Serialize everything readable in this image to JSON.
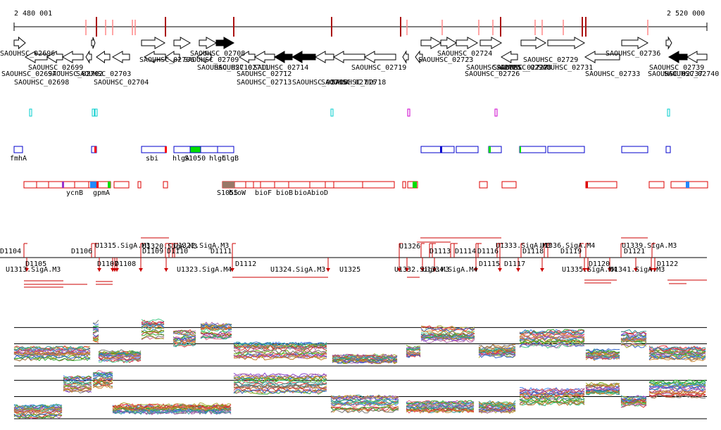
{
  "axis": {
    "start_label": "2 480 001",
    "end_label": "2 520 000",
    "start": 2480001,
    "end": 2520000
  },
  "colors": {
    "axis": "#000000",
    "tick_red": "#aa0000",
    "tick_light": "#ff9999",
    "gene_outline": "#000000",
    "gene_highlight": "#000000",
    "transcript": "#0000ff",
    "region": "#dd0000",
    "green": "#00dd00",
    "cyan": "#00cccc",
    "magenta": "#cc00cc"
  },
  "gene_labels": [
    "SAOUHSC_02696",
    "SAOUHSC_02697",
    "SAOUHSC_02698",
    "SAOUHSC_02699",
    "SAOUHSC_02702",
    "SAOUHSC_02703",
    "SAOUHSC_02704",
    "SAOUHSC_02706",
    "SAOUHSC_02708",
    "SAOUHSC_02709",
    "SAOUHSC_02710",
    "SAOUHSC_02711",
    "SAOUHSC_02712",
    "SAOUHSC_02713",
    "SAOUHSC_02714",
    "SAOUHSC_02715",
    "SAOUHSC_02716",
    "SAOUHSC_02718",
    "SAOUHSC_02719",
    "SAOUHSC_02723",
    "SAOUHSC_02724",
    "SAOUHSC_02725",
    "SAOUHSC_02726",
    "SAOUHSC_02727",
    "SAOUHSC_02728",
    "SAOUHSC_02729",
    "SAOUHSC_02731",
    "SAOUHSC_02733",
    "SAOUHSC_02736",
    "SAOUHSC_02737",
    "SAOUHSC_02739",
    "SAOUHSC_02740"
  ],
  "annot_labels_row1": [
    "fmhA",
    "sbi",
    "hlgA",
    "S1050",
    "hlgC",
    "hlgB"
  ],
  "annot_labels_row2": [
    "ycnB",
    "gpmA",
    "S1055",
    "bioW",
    "bioF",
    "bioB",
    "bioA",
    "bioD"
  ],
  "promoter_labels_above": [
    "D1104",
    "D1106",
    "U1315.SigA.M3",
    "U1320.SigA.M3",
    "D1109",
    "D1110",
    "U1322.SigA.M3",
    "D1111",
    "U1326",
    "D1113",
    "D1114",
    "D1116",
    "U1333.SigA.M3",
    "D1118",
    "D1119",
    "U1336.SigA.M4",
    "U1339.SigA.M3",
    "D1121"
  ],
  "promoter_labels_below": [
    "D1105",
    "U1313.SigA.M3",
    "D1107",
    "D1108",
    "U1323.SigA.M4",
    "D1112",
    "U1324.SigA.M3",
    "U1325",
    "U1332.SigA.M3",
    "U1334.SigA.M4",
    "D1115",
    "D1117",
    "U1335.SigA.M4",
    "D1120",
    "U1341.SigA.M3",
    "D1122"
  ]
}
